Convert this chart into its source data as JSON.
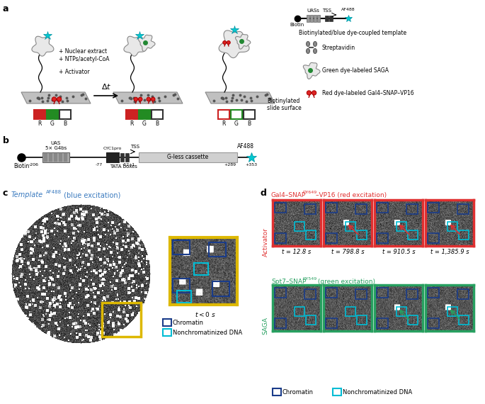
{
  "panel_labels": [
    "a",
    "b",
    "c",
    "d"
  ],
  "panel_c_title_color": "#3a7abf",
  "panel_c_box1_color": "#1a3c8a",
  "panel_c_box2_color": "#00bcd4",
  "activator_title_color": "#e03030",
  "saga_title_color": "#27a060",
  "red_border": "#e03030",
  "green_border": "#27a060",
  "yellow_border": "#ddb800",
  "time_labels": [
    "t = 12.8 s",
    "t = 798.8 s",
    "t = 910.5 s",
    "t = 1,385.9 s"
  ],
  "legend_chrom_color": "#1a3c8a",
  "legend_nonchr_color": "#00bcd4",
  "bg_gray": "#aaaaaa",
  "slide_color": "#c0c0c0",
  "slide_edge": "#888888"
}
